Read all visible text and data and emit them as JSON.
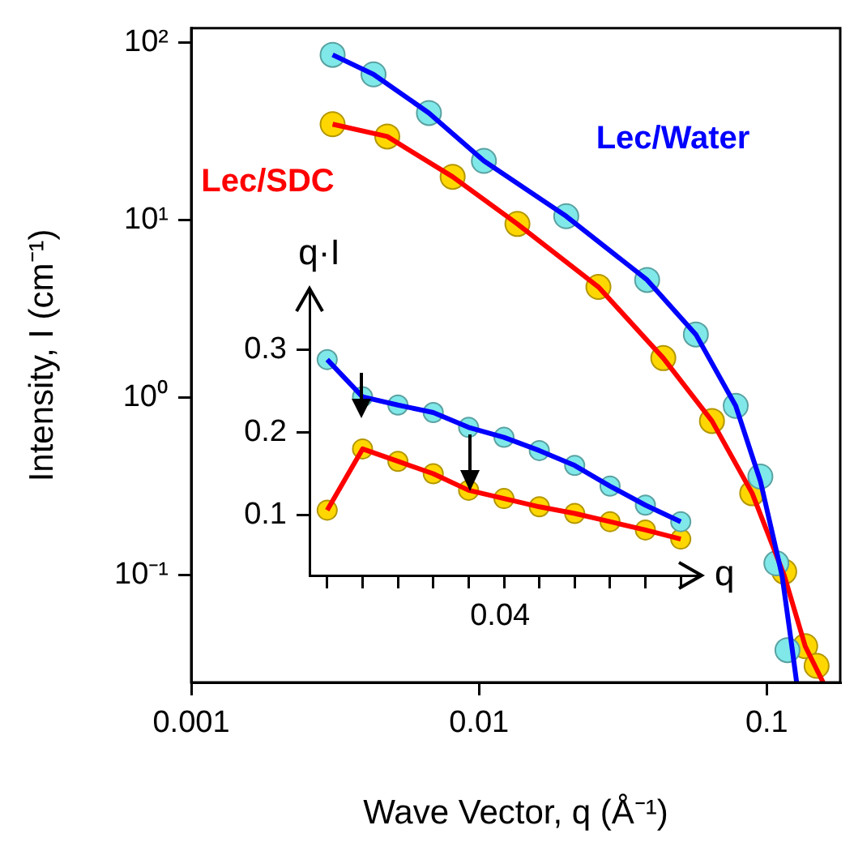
{
  "chart_data": [
    {
      "type": "scatter",
      "xlabel": "Wave Vector, q (Å⁻¹)",
      "ylabel": "Intensity, I (cm⁻¹)",
      "log": "xy",
      "xlim": [
        0.001,
        0.18
      ],
      "xticks": [
        0.001,
        0.01,
        0.1
      ],
      "ylim": [
        0.025,
        120
      ],
      "yticks": [
        {
          "value": 0.1,
          "label": "10⁻¹"
        },
        {
          "value": 1,
          "label": "10⁰"
        },
        {
          "value": 10,
          "label": "10¹"
        },
        {
          "value": 100,
          "label": "10²"
        }
      ],
      "grid": false,
      "legend": false,
      "marker": "circle",
      "series": [
        {
          "type": "scatter",
          "color": "#80e8e8",
          "x": [
            0.0031,
            0.0043,
            0.0067,
            0.0104,
            0.0201,
            0.0384,
            0.0567,
            0.078,
            0.095,
            0.108,
            0.118
          ],
          "values": [
            85,
            66,
            40,
            21.5,
            10.5,
            4.6,
            2.27,
            0.9,
            0.36,
            0.117,
            0.038
          ]
        },
        {
          "type": "scatter",
          "color": "#ffd700",
          "x": [
            0.0031,
            0.0048,
            0.0081,
            0.0136,
            0.026,
            0.0437,
            0.0645,
            0.089,
            0.115,
            0.136,
            0.149
          ],
          "values": [
            34.6,
            29.5,
            17.5,
            9.5,
            4.2,
            1.67,
            0.74,
            0.29,
            0.105,
            0.04,
            0.031
          ]
        },
        {
          "type": "line",
          "name": "Lec/Water",
          "color": "#0000ff",
          "marker": "none",
          "x": [
            0.0031,
            0.0043,
            0.0067,
            0.0104,
            0.0201,
            0.0384,
            0.0567,
            0.078,
            0.095,
            0.113,
            0.121,
            0.127
          ],
          "values": [
            85,
            66,
            40,
            21.5,
            10.5,
            4.6,
            2.27,
            0.9,
            0.34,
            0.1,
            0.045,
            0.025
          ]
        },
        {
          "type": "line",
          "name": "Lec/SDC",
          "color": "#ff0000",
          "marker": "none",
          "x": [
            0.0031,
            0.0048,
            0.0081,
            0.0136,
            0.026,
            0.0437,
            0.0645,
            0.089,
            0.115,
            0.136,
            0.157
          ],
          "values": [
            34.6,
            29.5,
            17.5,
            9.5,
            4.2,
            1.67,
            0.74,
            0.29,
            0.1,
            0.04,
            0.025
          ]
        }
      ]
    },
    {
      "type": "scatter",
      "xlabel": "q",
      "ylabel": "q·I",
      "annotations": [
        "0.04"
      ],
      "categories": [
        null,
        null,
        null,
        null,
        null,
        null,
        null,
        null,
        null,
        null,
        null
      ],
      "ylim": [
        0.027,
        0.37
      ],
      "yticks": [
        0.1,
        0.2,
        0.3
      ],
      "grid": false,
      "legend": false,
      "marker": "circle",
      "series": [
        {
          "type": "scatter",
          "color": "#80e8e8",
          "values": [
            0.288,
            0.243,
            0.233,
            0.224,
            0.206,
            0.194,
            0.178,
            0.16,
            0.135,
            0.112,
            0.092
          ]
        },
        {
          "type": "scatter",
          "color": "#ffd700",
          "values": [
            0.106,
            0.18,
            0.165,
            0.15,
            0.13,
            0.12,
            0.11,
            0.102,
            0.092,
            0.082,
            0.071
          ]
        },
        {
          "type": "line",
          "color": "#0000ff",
          "marker": "none",
          "values": [
            0.288,
            0.243,
            0.233,
            0.224,
            0.206,
            0.194,
            0.178,
            0.16,
            0.135,
            0.112,
            0.092
          ]
        },
        {
          "type": "line",
          "color": "#ff0000",
          "marker": "none",
          "values": [
            0.106,
            0.18,
            0.165,
            0.15,
            0.13,
            0.12,
            0.11,
            0.102,
            0.092,
            0.082,
            0.071
          ]
        }
      ]
    }
  ]
}
